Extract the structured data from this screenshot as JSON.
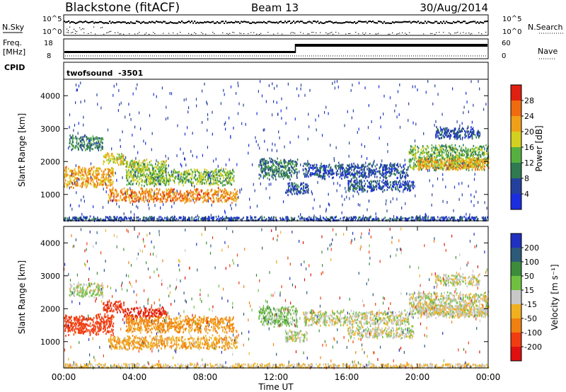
{
  "header": {
    "radar": "Blackstone (fitACF)",
    "beam": "Beam 13",
    "date": "30/Aug/2014"
  },
  "sky_panel": {
    "left_label": "N.Sky",
    "right_label": "N.Search",
    "tick_high": "10^5",
    "tick_low": "10^0"
  },
  "freq_panel": {
    "left_label_1": "Freq.",
    "left_label_2": "[MHz]",
    "ticks_left": [
      "18",
      "8"
    ],
    "ticks_right": [
      "60",
      "0"
    ],
    "right_label": "Nave",
    "nave_step_hour": 13.1
  },
  "cpid": {
    "label": "CPID",
    "value": "twofsound  -3501"
  },
  "power_panel": {
    "ylabel": "Slant Range [km]",
    "yticks": [
      "1000",
      "2000",
      "3000",
      "4000"
    ],
    "colorbar_title": "Power [dB]",
    "colorbar_labels": [
      "4",
      "8",
      "12",
      "16",
      "20",
      "24",
      "28"
    ],
    "colors": [
      "#1a2ee0",
      "#25409c",
      "#2f7a50",
      "#55b040",
      "#d4d020",
      "#f0a018",
      "#f06a10",
      "#e02010"
    ]
  },
  "velocity_panel": {
    "ylabel": "Slant Range [km]",
    "yticks": [
      "1000",
      "2000",
      "3000",
      "4000"
    ],
    "colorbar_title": "Velocity [m s⁻¹]",
    "colorbar_labels": [
      "200",
      "100",
      "50",
      "15",
      "-15",
      "-50",
      "-100",
      "-200"
    ],
    "colors": [
      "#2030c0",
      "#2c5a78",
      "#3c8c3c",
      "#70c040",
      "#c8c8c8",
      "#f0b020",
      "#f08010",
      "#f03c10",
      "#e01010"
    ]
  },
  "x_axis": {
    "label": "Time UT",
    "ticks": [
      "00:00",
      "04:00",
      "08:00",
      "12:00",
      "16:00",
      "20:00",
      "00:00"
    ]
  },
  "chart_data": {
    "type": "heatmap",
    "title": "Blackstone (fitACF)  Beam 13  30/Aug/2014",
    "xlabel": "Time UT",
    "ylabel": "Slant Range [km]",
    "xlim": [
      "00:00",
      "24:00"
    ],
    "ylim": [
      200,
      4500
    ],
    "echo_regions": [
      {
        "t0": 0.0,
        "t1": 2.8,
        "r_center": 1550,
        "r_half": 350,
        "power": 22,
        "velocity": -150
      },
      {
        "t0": 0.3,
        "t1": 2.2,
        "r_center": 2600,
        "r_half": 250,
        "power": 10,
        "velocity": 10
      },
      {
        "t0": 2.2,
        "t1": 3.4,
        "r_center": 2100,
        "r_half": 200,
        "power": 18,
        "velocity": -180
      },
      {
        "t0": 3.4,
        "t1": 5.8,
        "r_center": 1900,
        "r_half": 200,
        "power": 16,
        "velocity": -200
      },
      {
        "t0": 3.5,
        "t1": 9.6,
        "r_center": 1550,
        "r_half": 280,
        "power": 15,
        "velocity": -60
      },
      {
        "t0": 2.5,
        "t1": 9.8,
        "r_center": 1000,
        "r_half": 230,
        "power": 24,
        "velocity": -40
      },
      {
        "t0": 0.0,
        "t1": 24.0,
        "r_center": 280,
        "r_half": 90,
        "power": 6,
        "velocity": -20
      },
      {
        "t0": 11.0,
        "t1": 13.2,
        "r_center": 1800,
        "r_half": 350,
        "power": 10,
        "velocity": 30
      },
      {
        "t0": 12.5,
        "t1": 13.8,
        "r_center": 1200,
        "r_half": 200,
        "power": 6,
        "velocity": 0
      },
      {
        "t0": 13.5,
        "t1": 19.5,
        "r_center": 1750,
        "r_half": 250,
        "power": 6,
        "velocity": 0
      },
      {
        "t0": 16.0,
        "t1": 19.8,
        "r_center": 1300,
        "r_half": 200,
        "power": 6,
        "velocity": 0
      },
      {
        "t0": 19.5,
        "t1": 24.0,
        "r_center": 2150,
        "r_half": 420,
        "power": 14,
        "velocity": 0
      },
      {
        "t0": 20.0,
        "t1": 24.0,
        "r_center": 1950,
        "r_half": 200,
        "power": 22,
        "velocity": -10
      },
      {
        "t0": 21.0,
        "t1": 23.5,
        "r_center": 2900,
        "r_half": 200,
        "power": 6,
        "velocity": 0
      }
    ],
    "nave_step_time": "13:06",
    "legend": "right"
  }
}
